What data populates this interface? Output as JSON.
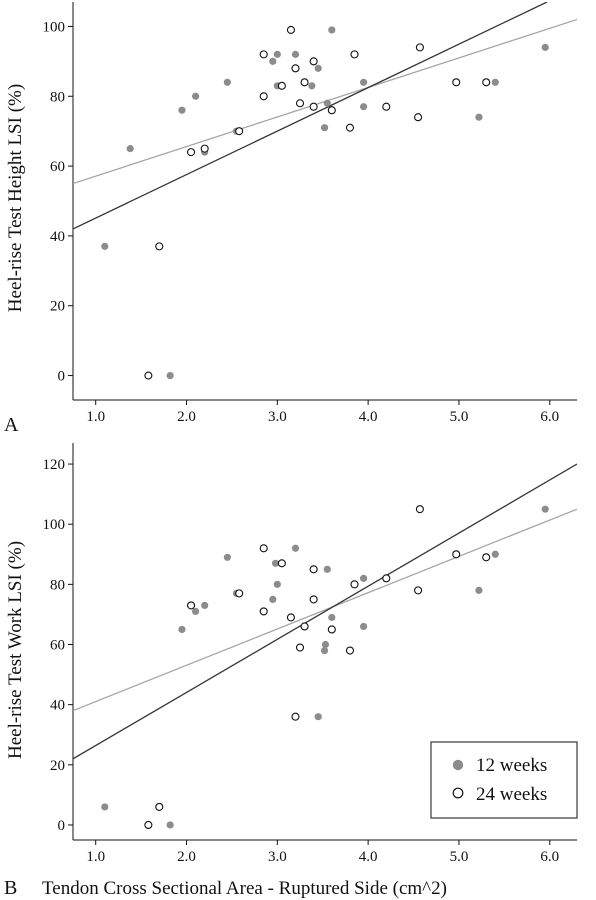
{
  "chart_data": [
    {
      "panel_label": "A",
      "type": "scatter",
      "title": "",
      "xlabel": "",
      "ylabel": "Heel-rise Test Height LSI (%)",
      "xlim": [
        0.75,
        6.3
      ],
      "ylim": [
        -7,
        107
      ],
      "xticks": [
        "1.0",
        "2.0",
        "3.0",
        "4.0",
        "5.0",
        "6.0"
      ],
      "yticks": [
        "0",
        "20",
        "40",
        "60",
        "80",
        "100"
      ],
      "grid": false,
      "series": [
        {
          "name": "12 weeks",
          "marker": "filled-circle",
          "color": "#8c8c8c",
          "points": [
            [
              1.1,
              37
            ],
            [
              1.38,
              65
            ],
            [
              1.82,
              0
            ],
            [
              1.95,
              76
            ],
            [
              2.1,
              80
            ],
            [
              2.2,
              64
            ],
            [
              2.45,
              84
            ],
            [
              2.55,
              70
            ],
            [
              2.95,
              90
            ],
            [
              3.0,
              92
            ],
            [
              3.0,
              83
            ],
            [
              3.2,
              92
            ],
            [
              3.38,
              83
            ],
            [
              3.45,
              88
            ],
            [
              3.52,
              71
            ],
            [
              3.55,
              78
            ],
            [
              3.6,
              99
            ],
            [
              3.95,
              84
            ],
            [
              3.95,
              77
            ],
            [
              5.22,
              74
            ],
            [
              5.4,
              84
            ],
            [
              5.95,
              94
            ]
          ],
          "fit": [
            [
              0.75,
              55
            ],
            [
              6.3,
              102
            ]
          ]
        },
        {
          "name": "24 weeks",
          "marker": "open-circle",
          "color": "#111111",
          "points": [
            [
              1.58,
              0
            ],
            [
              1.7,
              37
            ],
            [
              2.05,
              64
            ],
            [
              2.2,
              65
            ],
            [
              2.58,
              70
            ],
            [
              2.85,
              80
            ],
            [
              2.85,
              92
            ],
            [
              3.05,
              83
            ],
            [
              3.15,
              99
            ],
            [
              3.2,
              88
            ],
            [
              3.25,
              78
            ],
            [
              3.3,
              84
            ],
            [
              3.4,
              90
            ],
            [
              3.4,
              77
            ],
            [
              3.6,
              76
            ],
            [
              3.8,
              71
            ],
            [
              3.85,
              92
            ],
            [
              4.2,
              77
            ],
            [
              4.55,
              74
            ],
            [
              4.57,
              94
            ],
            [
              4.97,
              84
            ],
            [
              5.3,
              84
            ]
          ],
          "fit": [
            [
              0.75,
              42
            ],
            [
              5.97,
              107
            ]
          ]
        }
      ]
    },
    {
      "panel_label": "B",
      "type": "scatter",
      "title": "",
      "xlabel": "Tendon Cross Sectional Area - Ruptured Side (cm^2)",
      "ylabel": "Heel-rise Test Work LSI (%)",
      "xlim": [
        0.75,
        6.3
      ],
      "ylim": [
        -5,
        127
      ],
      "xticks": [
        "1.0",
        "2.0",
        "3.0",
        "4.0",
        "5.0",
        "6.0"
      ],
      "yticks": [
        "0",
        "20",
        "40",
        "60",
        "80",
        "100",
        "120"
      ],
      "grid": false,
      "legend": {
        "position": "bottom-right",
        "entries": [
          "12 weeks",
          "24 weeks"
        ]
      },
      "series": [
        {
          "name": "12 weeks",
          "marker": "filled-circle",
          "color": "#8c8c8c",
          "points": [
            [
              1.1,
              6
            ],
            [
              1.82,
              0
            ],
            [
              1.95,
              65
            ],
            [
              2.1,
              71
            ],
            [
              2.2,
              73
            ],
            [
              2.45,
              89
            ],
            [
              2.55,
              77
            ],
            [
              2.95,
              75
            ],
            [
              2.98,
              87
            ],
            [
              3.0,
              80
            ],
            [
              3.2,
              92
            ],
            [
              3.45,
              36
            ],
            [
              3.52,
              58
            ],
            [
              3.53,
              60
            ],
            [
              3.55,
              85
            ],
            [
              3.6,
              69
            ],
            [
              3.95,
              66
            ],
            [
              3.95,
              82
            ],
            [
              5.22,
              78
            ],
            [
              5.4,
              90
            ],
            [
              5.95,
              105
            ]
          ],
          "fit": [
            [
              0.75,
              38
            ],
            [
              6.3,
              105
            ]
          ]
        },
        {
          "name": "24 weeks",
          "marker": "open-circle",
          "color": "#111111",
          "points": [
            [
              1.58,
              0
            ],
            [
              1.7,
              6
            ],
            [
              2.05,
              73
            ],
            [
              2.58,
              77
            ],
            [
              2.85,
              71
            ],
            [
              2.85,
              92
            ],
            [
              3.05,
              87
            ],
            [
              3.15,
              69
            ],
            [
              3.2,
              36
            ],
            [
              3.25,
              59
            ],
            [
              3.3,
              66
            ],
            [
              3.4,
              85
            ],
            [
              3.4,
              75
            ],
            [
              3.6,
              65
            ],
            [
              3.8,
              58
            ],
            [
              3.85,
              80
            ],
            [
              4.2,
              82
            ],
            [
              4.55,
              78
            ],
            [
              4.57,
              105
            ],
            [
              4.97,
              90
            ],
            [
              5.3,
              89
            ]
          ],
          "fit": [
            [
              0.75,
              22
            ],
            [
              6.3,
              120
            ]
          ]
        }
      ]
    }
  ]
}
